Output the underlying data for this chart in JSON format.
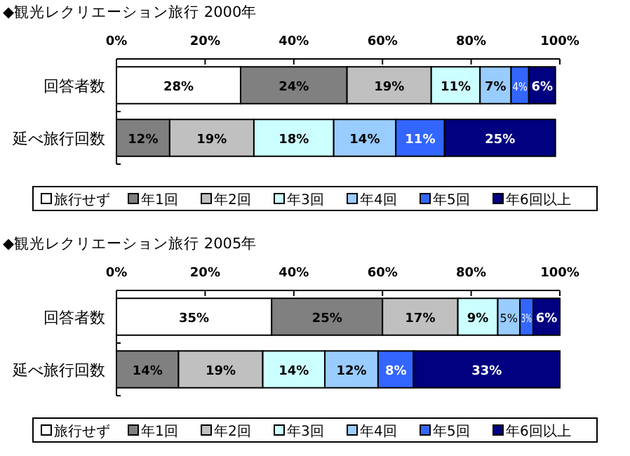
{
  "chart_data": [
    {
      "type": "bar",
      "orientation": "horizontal",
      "stacked": true,
      "title": "◆観光レクリエーション旅行  2000年",
      "categories": [
        "回答者数",
        "延べ旅行回数"
      ],
      "xlim": [
        0,
        100
      ],
      "xticks": [
        {
          "value": 0,
          "label": "0%"
        },
        {
          "value": 20,
          "label": "20%"
        },
        {
          "value": 40,
          "label": "40%"
        },
        {
          "value": 60,
          "label": "60%"
        },
        {
          "value": 80,
          "label": "80%"
        },
        {
          "value": 100,
          "label": "100%"
        }
      ],
      "grid": false,
      "legend": "bottom",
      "series": [
        {
          "name": "旅行せず",
          "color": "#ffffff",
          "values": [
            28,
            0
          ],
          "value_labels": [
            "28%",
            null
          ]
        },
        {
          "name": "年1回",
          "color": "#808080",
          "values": [
            24,
            12
          ],
          "value_labels": [
            "24%",
            "12%"
          ]
        },
        {
          "name": "年2回",
          "color": "#c0c0c0",
          "values": [
            19,
            19
          ],
          "value_labels": [
            "19%",
            "19%"
          ]
        },
        {
          "name": "年3回",
          "color": "#ccffff",
          "values": [
            11,
            18
          ],
          "value_labels": [
            "11%",
            "18%"
          ]
        },
        {
          "name": "年4回",
          "color": "#99ccff",
          "values": [
            7,
            14
          ],
          "value_labels": [
            "7%",
            "14%"
          ]
        },
        {
          "name": "年5回",
          "color": "#3366ff",
          "values": [
            4,
            11
          ],
          "value_labels": [
            "4%",
            "11%"
          ]
        },
        {
          "name": "年6回以上",
          "color": "#000080",
          "values": [
            6,
            25
          ],
          "value_labels": [
            "6%",
            "25%"
          ]
        }
      ]
    },
    {
      "type": "bar",
      "orientation": "horizontal",
      "stacked": true,
      "title": "◆観光レクリエーション旅行  2005年",
      "categories": [
        "回答者数",
        "延べ旅行回数"
      ],
      "xlim": [
        0,
        100
      ],
      "xticks": [
        {
          "value": 0,
          "label": "0%"
        },
        {
          "value": 20,
          "label": "20%"
        },
        {
          "value": 40,
          "label": "40%"
        },
        {
          "value": 60,
          "label": "60%"
        },
        {
          "value": 80,
          "label": "80%"
        },
        {
          "value": 100,
          "label": "100%"
        }
      ],
      "grid": false,
      "legend": "bottom",
      "series": [
        {
          "name": "旅行せず",
          "color": "#ffffff",
          "values": [
            35,
            0
          ],
          "value_labels": [
            "35%",
            null
          ]
        },
        {
          "name": "年1回",
          "color": "#808080",
          "values": [
            25,
            14
          ],
          "value_labels": [
            "25%",
            "14%"
          ]
        },
        {
          "name": "年2回",
          "color": "#c0c0c0",
          "values": [
            17,
            19
          ],
          "value_labels": [
            "17%",
            "19%"
          ]
        },
        {
          "name": "年3回",
          "color": "#ccffff",
          "values": [
            9,
            14
          ],
          "value_labels": [
            "9%",
            "14%"
          ]
        },
        {
          "name": "年4回",
          "color": "#99ccff",
          "values": [
            5,
            12
          ],
          "value_labels": [
            "5%",
            "12%"
          ]
        },
        {
          "name": "年5回",
          "color": "#3366ff",
          "values": [
            3,
            8
          ],
          "value_labels": [
            "3%",
            "8%"
          ]
        },
        {
          "name": "年6回以上",
          "color": "#000080",
          "values": [
            6,
            33
          ],
          "value_labels": [
            "6%",
            "33%"
          ]
        }
      ]
    }
  ]
}
